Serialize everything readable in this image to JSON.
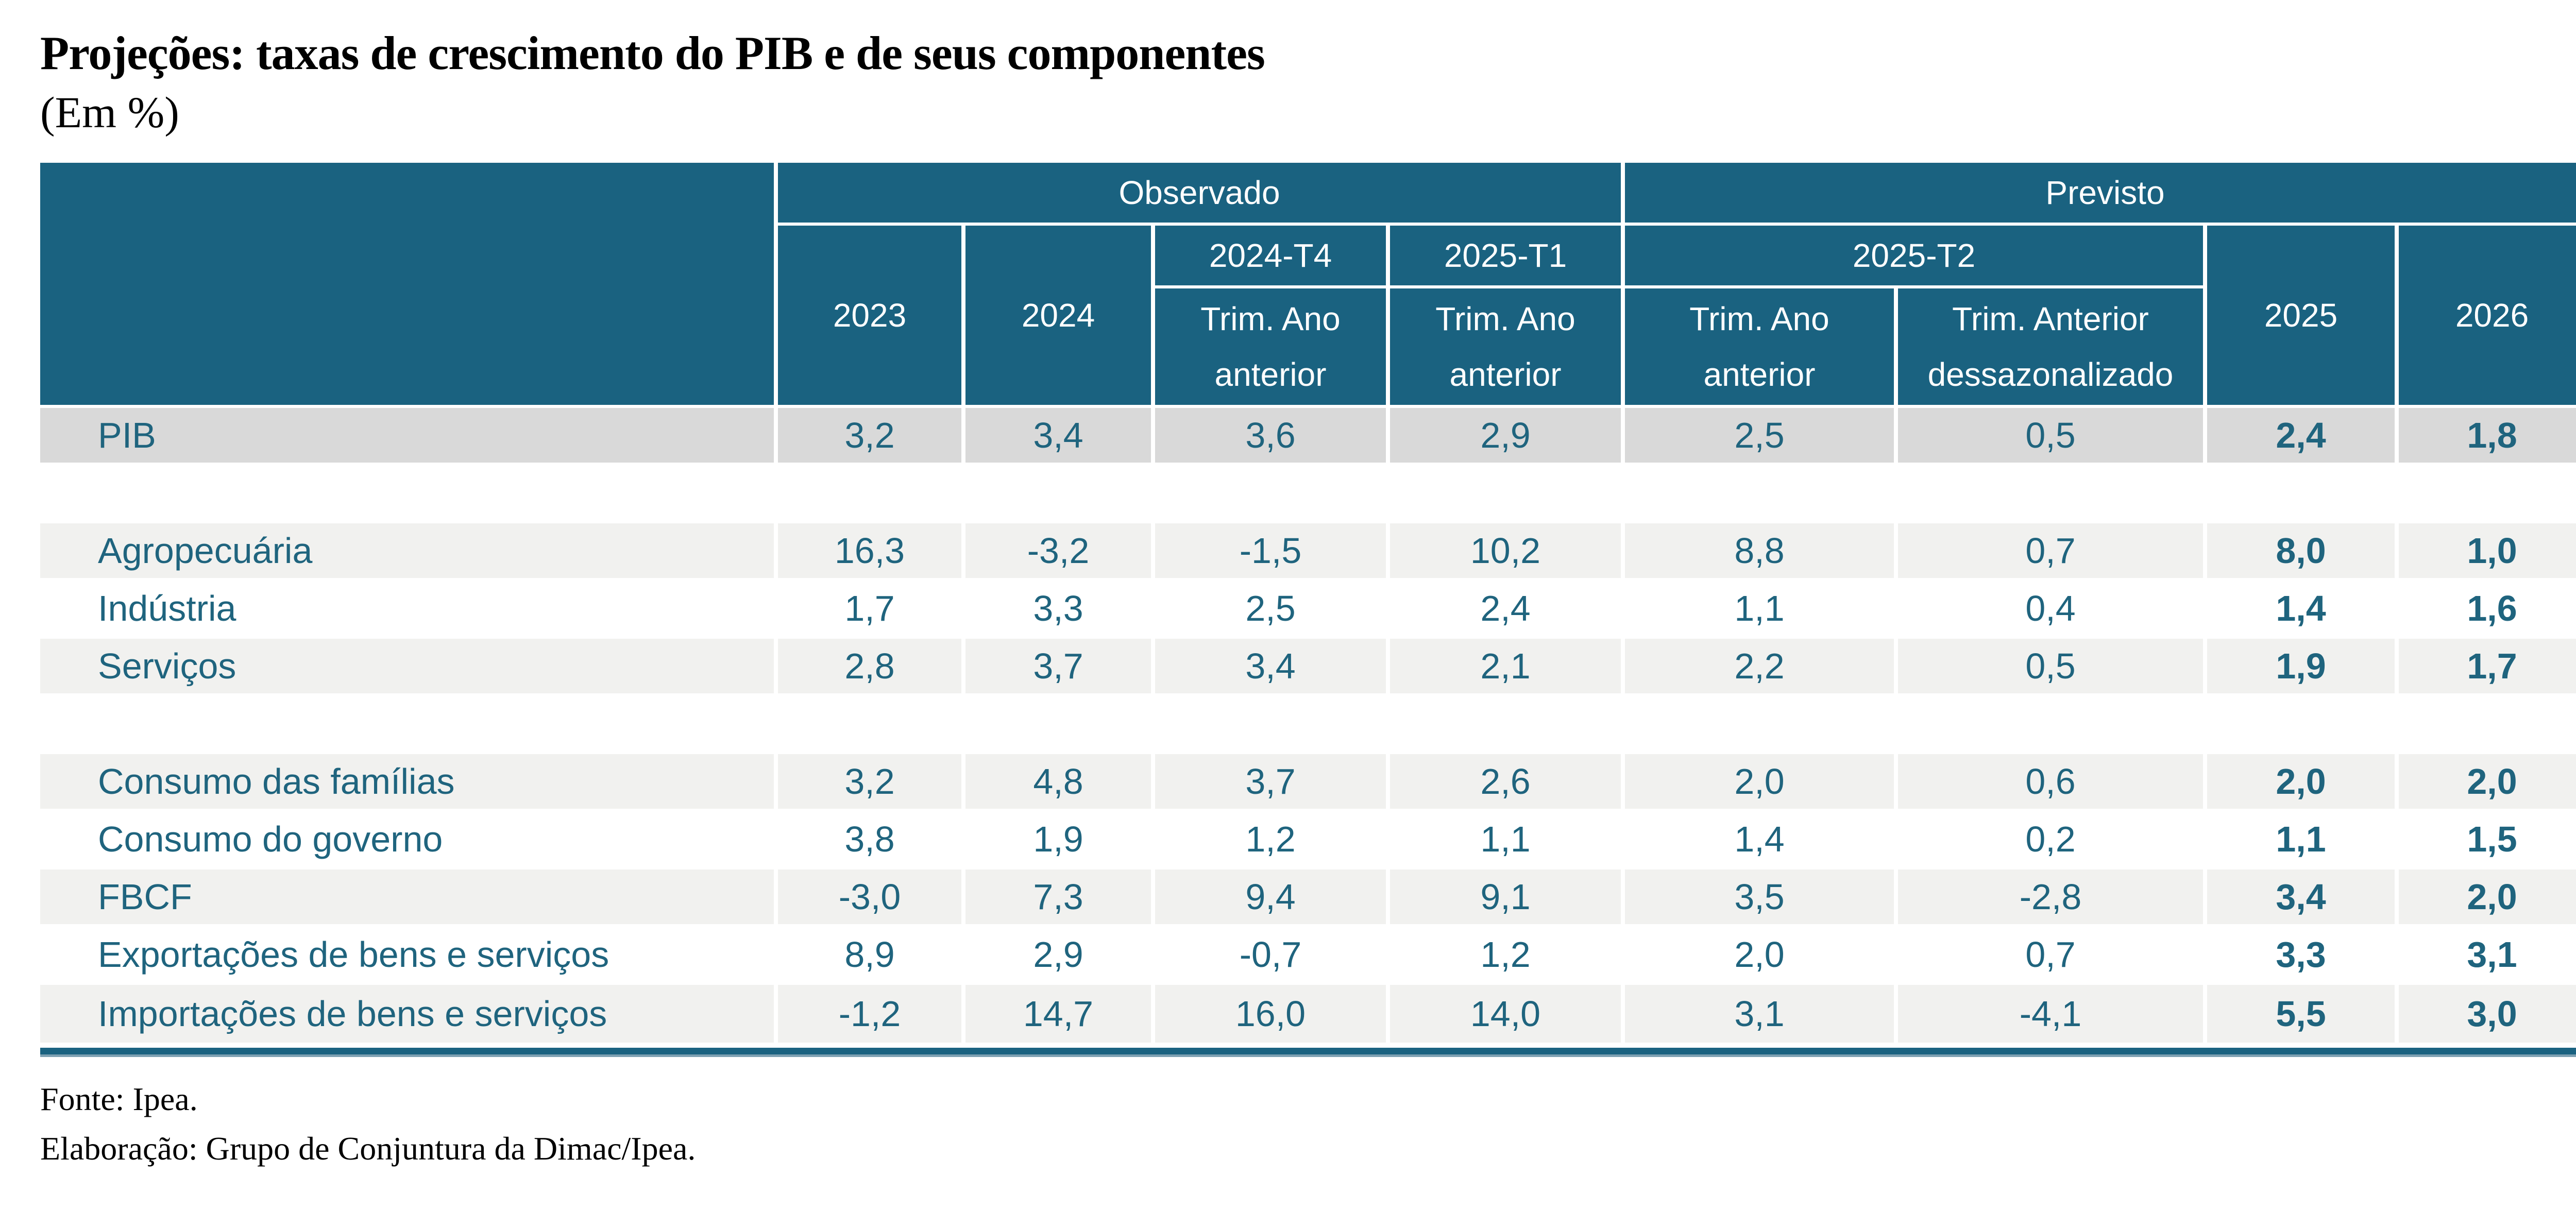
{
  "header": {
    "title": "Projeções: taxas de crescimento do PIB e de seus componentes",
    "subtitle": "(Em %)"
  },
  "table": {
    "group_headers": [
      "Observado",
      "Previsto"
    ],
    "year_headers": [
      "2023",
      "2024",
      "2025",
      "2026"
    ],
    "quarter_headers": [
      "2024-T4",
      "2025-T1",
      "2025-T2"
    ],
    "sub_headers": [
      "Trim. Ano anterior",
      "Trim. Ano anterior",
      "Trim. Ano anterior",
      "Trim. Anterior dessazonalizado"
    ],
    "rows": [
      {
        "type": "data",
        "variant": "highlight",
        "label": "PIB",
        "values": [
          "3,2",
          "3,4",
          "3,6",
          "2,9",
          "2,5",
          "0,5",
          "2,4",
          "1,8"
        ]
      },
      {
        "type": "spacer"
      },
      {
        "type": "data",
        "variant": "light",
        "label": "Agropecuária",
        "values": [
          "16,3",
          "-3,2",
          "-1,5",
          "10,2",
          "8,8",
          "0,7",
          "8,0",
          "1,0"
        ]
      },
      {
        "type": "data",
        "variant": "plain",
        "label": "Indústria",
        "values": [
          "1,7",
          "3,3",
          "2,5",
          "2,4",
          "1,1",
          "0,4",
          "1,4",
          "1,6"
        ]
      },
      {
        "type": "data",
        "variant": "light",
        "label": "Serviços",
        "values": [
          "2,8",
          "3,7",
          "3,4",
          "2,1",
          "2,2",
          "0,5",
          "1,9",
          "1,7"
        ]
      },
      {
        "type": "spacer"
      },
      {
        "type": "data",
        "variant": "light",
        "label": "Consumo das famílias",
        "values": [
          "3,2",
          "4,8",
          "3,7",
          "2,6",
          "2,0",
          "0,6",
          "2,0",
          "2,0"
        ]
      },
      {
        "type": "data",
        "variant": "plain",
        "label": "Consumo do governo",
        "values": [
          "3,8",
          "1,9",
          "1,2",
          "1,1",
          "1,4",
          "0,2",
          "1,1",
          "1,5"
        ]
      },
      {
        "type": "data",
        "variant": "light",
        "label": "FBCF",
        "values": [
          "-3,0",
          "7,3",
          "9,4",
          "9,1",
          "3,5",
          "-2,8",
          "3,4",
          "2,0"
        ]
      },
      {
        "type": "data",
        "variant": "plain",
        "label": "Exportações de bens e serviços",
        "values": [
          "8,9",
          "2,9",
          "-0,7",
          "1,2",
          "2,0",
          "0,7",
          "3,3",
          "3,1"
        ]
      },
      {
        "type": "data",
        "variant": "light",
        "label": "Importações de bens e serviços",
        "values": [
          "-1,2",
          "14,7",
          "16,0",
          "14,0",
          "3,1",
          "-4,1",
          "5,5",
          "3,0"
        ]
      }
    ]
  },
  "footer": {
    "source": "Fonte: Ipea.",
    "elaboration": "Elaboração: Grupo de Conjuntura da Dimac/Ipea."
  },
  "colors": {
    "accent_teal": "#1A6280",
    "highlight_row_gray": "#d9d9d9",
    "striped_row_gray": "#f1f1ef",
    "data_text_teal": "#1F647E",
    "bar_underline_blue": "#7DA0B2"
  }
}
